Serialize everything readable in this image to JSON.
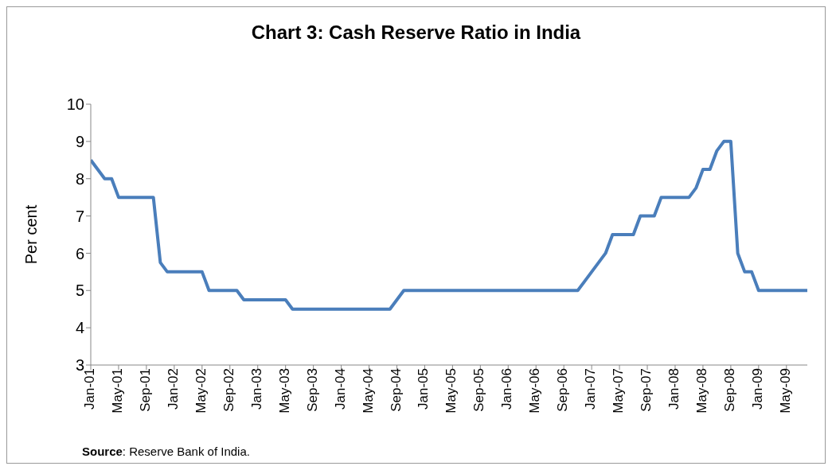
{
  "chart_data": {
    "type": "line",
    "title": "Chart 3: Cash Reserve Ratio in India",
    "ylabel": "Per cent",
    "categories": [
      "Jan-01",
      null,
      null,
      null,
      "May-01",
      null,
      null,
      null,
      "Sep-01",
      null,
      null,
      null,
      "Jan-02",
      null,
      null,
      null,
      "May-02",
      null,
      null,
      null,
      "Sep-02",
      null,
      null,
      null,
      "Jan-03",
      null,
      null,
      null,
      "May-03",
      null,
      null,
      null,
      "Sep-03",
      null,
      null,
      null,
      "Jan-04",
      null,
      null,
      null,
      "May-04",
      null,
      null,
      null,
      "Sep-04",
      null,
      null,
      null,
      "Jan-05",
      null,
      null,
      null,
      "May-05",
      null,
      null,
      null,
      "Sep-05",
      null,
      null,
      null,
      "Jan-06",
      null,
      null,
      null,
      "May-06",
      null,
      null,
      null,
      "Sep-06",
      null,
      null,
      null,
      "Jan-07",
      null,
      null,
      null,
      "May-07",
      null,
      null,
      null,
      "Sep-07",
      null,
      null,
      null,
      "Jan-08",
      null,
      null,
      null,
      "May-08",
      null,
      null,
      null,
      "Sep-08",
      null,
      null,
      null,
      "Jan-09",
      null,
      null,
      null,
      "May-09",
      null,
      null,
      null
    ],
    "series": [
      {
        "color": "#4a7ebb",
        "values": [
          8.5,
          8.25,
          8.0,
          8.0,
          7.5,
          7.5,
          7.5,
          7.5,
          7.5,
          7.5,
          5.75,
          5.5,
          5.5,
          5.5,
          5.5,
          5.5,
          5.5,
          5.0,
          5.0,
          5.0,
          5.0,
          5.0,
          4.75,
          4.75,
          4.75,
          4.75,
          4.75,
          4.75,
          4.75,
          4.5,
          4.5,
          4.5,
          4.5,
          4.5,
          4.5,
          4.5,
          4.5,
          4.5,
          4.5,
          4.5,
          4.5,
          4.5,
          4.5,
          4.5,
          4.75,
          5.0,
          5.0,
          5.0,
          5.0,
          5.0,
          5.0,
          5.0,
          5.0,
          5.0,
          5.0,
          5.0,
          5.0,
          5.0,
          5.0,
          5.0,
          5.0,
          5.0,
          5.0,
          5.0,
          5.0,
          5.0,
          5.0,
          5.0,
          5.0,
          5.0,
          5.0,
          5.25,
          5.5,
          5.75,
          6.0,
          6.5,
          6.5,
          6.5,
          6.5,
          7.0,
          7.0,
          7.0,
          7.5,
          7.5,
          7.5,
          7.5,
          7.5,
          7.75,
          8.25,
          8.25,
          8.75,
          9.0,
          9.0,
          6.0,
          5.5,
          5.5,
          5.0,
          5.0,
          5.0,
          5.0,
          5.0,
          5.0,
          5.0,
          5.0
        ]
      }
    ],
    "ylim": [
      3,
      10
    ],
    "yticks": [
      3,
      4,
      5,
      6,
      7,
      8,
      9,
      10
    ],
    "grid": false,
    "legend": false,
    "marker": "none",
    "line_style": "solid",
    "annotations": [
      "Source: Reserve Bank of India."
    ]
  }
}
